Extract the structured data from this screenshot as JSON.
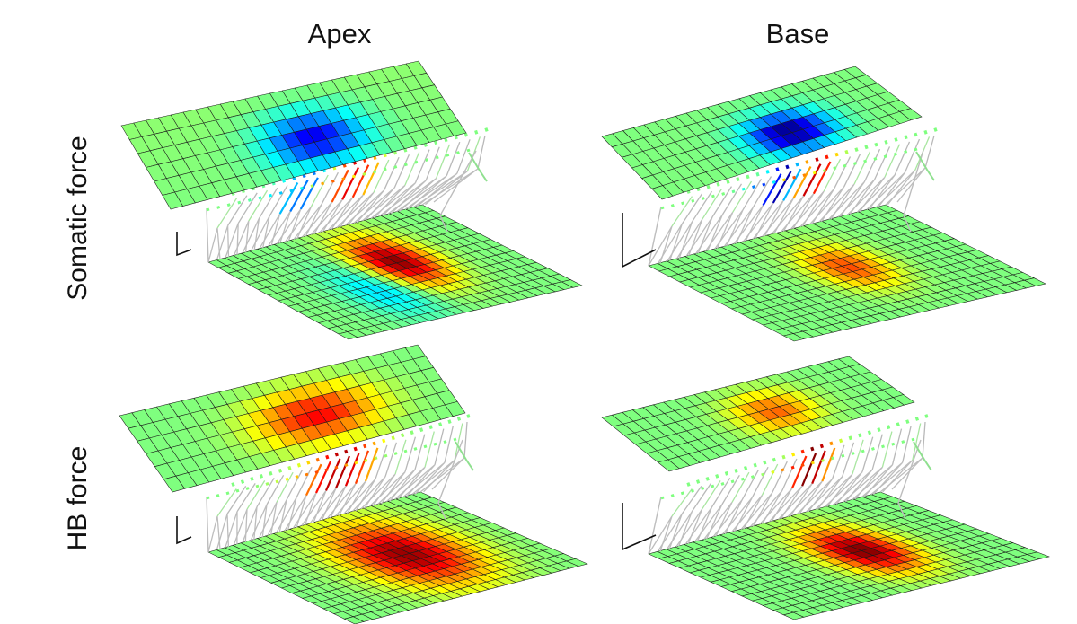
{
  "figure": {
    "columns": [
      {
        "id": "apex",
        "label": "Apex"
      },
      {
        "id": "base",
        "label": "Base"
      }
    ],
    "rows": [
      {
        "id": "somatic",
        "label": "Somatic force"
      },
      {
        "id": "hb",
        "label": "HB force"
      }
    ],
    "panels": [
      {
        "row": "somatic",
        "column": "apex",
        "top_membrane": {
          "min": -0.8,
          "max": 0.15
        },
        "bottom_membrane": {
          "min": -0.35,
          "max": 1.0
        },
        "hair_bundle": {
          "min": -0.6,
          "max": 0.9
        }
      },
      {
        "row": "somatic",
        "column": "base",
        "top_membrane": {
          "min": -1.0,
          "max": 0.1
        },
        "bottom_membrane": {
          "min": 0.0,
          "max": 0.6
        },
        "hair_bundle": {
          "min": -1.0,
          "max": 0.9
        }
      },
      {
        "row": "hb",
        "column": "apex",
        "top_membrane": {
          "min": 0.0,
          "max": 0.75
        },
        "bottom_membrane": {
          "min": 0.0,
          "max": 0.95
        },
        "hair_bundle": {
          "min": 0.0,
          "max": 0.9
        }
      },
      {
        "row": "hb",
        "column": "base",
        "top_membrane": {
          "min": 0.0,
          "max": 0.55
        },
        "bottom_membrane": {
          "min": 0.0,
          "max": 1.0
        },
        "hair_bundle": {
          "min": 0.0,
          "max": 1.0
        }
      }
    ],
    "colormap": [
      "#00007f",
      "#0000ff",
      "#007fff",
      "#00ffff",
      "#7fff7f",
      "#ffff00",
      "#ff7f00",
      "#ff0000",
      "#7f0000"
    ]
  }
}
